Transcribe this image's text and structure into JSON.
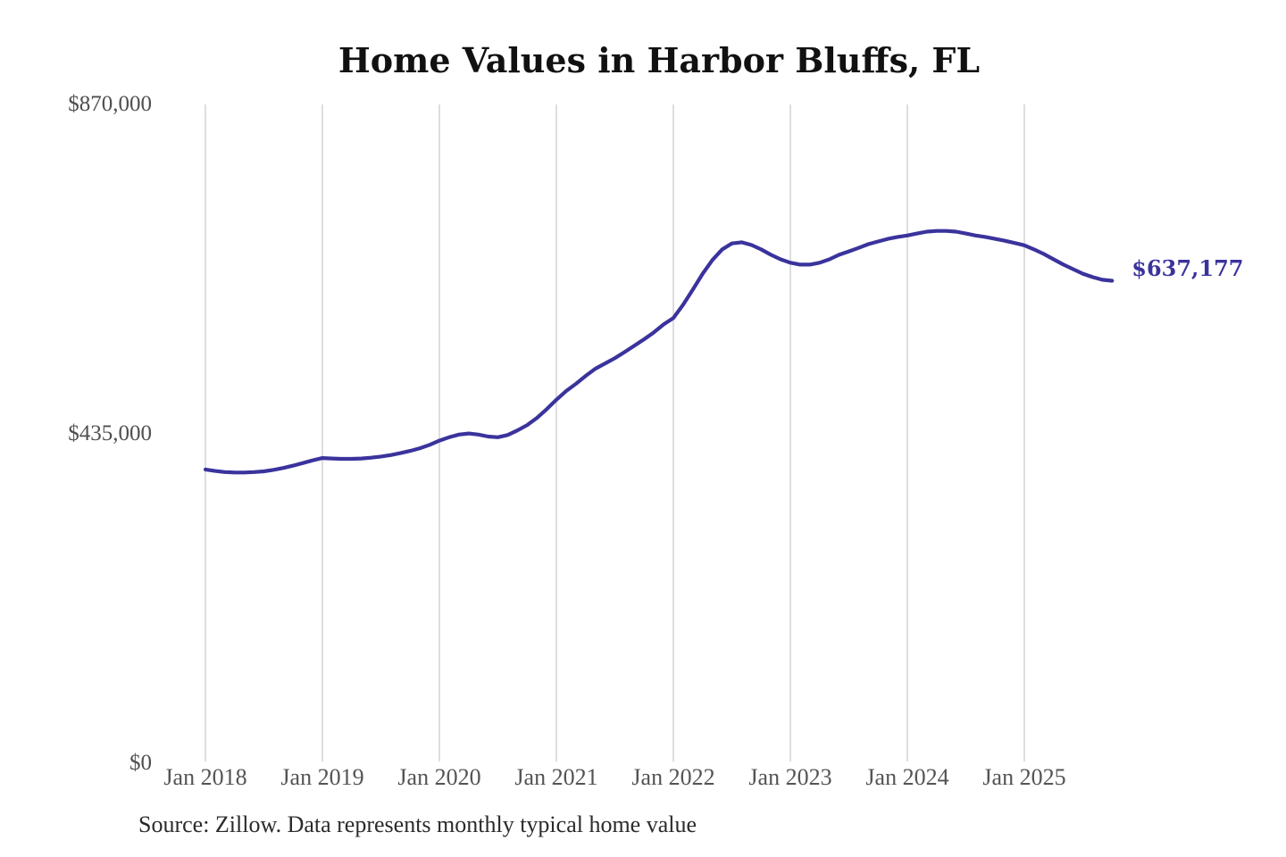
{
  "chart_data": {
    "type": "line",
    "title": "Home Values in Harbor Bluffs, FL",
    "source_note": "Source: Zillow. Data represents monthly typical home value",
    "end_label": "$637,177",
    "end_value": 637177,
    "line_color": "#3b339c",
    "grid_color": "#cccccc",
    "grid": "vertical-only",
    "legend": false,
    "ylim": [
      0,
      870000
    ],
    "y_ticks": [
      {
        "label": "$870,000",
        "value": 870000
      },
      {
        "label": "$435,000",
        "value": 435000
      },
      {
        "label": "$0",
        "value": 0
      }
    ],
    "x_ticks": [
      "Jan 2018",
      "Jan 2019",
      "Jan 2020",
      "Jan 2021",
      "Jan 2022",
      "Jan 2023",
      "Jan 2024",
      "Jan 2025"
    ],
    "x": [
      "2018-01",
      "2018-02",
      "2018-03",
      "2018-04",
      "2018-05",
      "2018-06",
      "2018-07",
      "2018-08",
      "2018-09",
      "2018-10",
      "2018-11",
      "2018-12",
      "2019-01",
      "2019-02",
      "2019-03",
      "2019-04",
      "2019-05",
      "2019-06",
      "2019-07",
      "2019-08",
      "2019-09",
      "2019-10",
      "2019-11",
      "2019-12",
      "2020-01",
      "2020-02",
      "2020-03",
      "2020-04",
      "2020-05",
      "2020-06",
      "2020-07",
      "2020-08",
      "2020-09",
      "2020-10",
      "2020-11",
      "2020-12",
      "2021-01",
      "2021-02",
      "2021-03",
      "2021-04",
      "2021-05",
      "2021-06",
      "2021-07",
      "2021-08",
      "2021-09",
      "2021-10",
      "2021-11",
      "2021-12",
      "2022-01",
      "2022-02",
      "2022-03",
      "2022-04",
      "2022-05",
      "2022-06",
      "2022-07",
      "2022-08",
      "2022-09",
      "2022-10",
      "2022-11",
      "2022-12",
      "2023-01",
      "2023-02",
      "2023-03",
      "2023-04",
      "2023-05",
      "2023-06",
      "2023-07",
      "2023-08",
      "2023-09",
      "2023-10",
      "2023-11",
      "2023-12",
      "2024-01",
      "2024-02",
      "2024-03",
      "2024-04",
      "2024-05",
      "2024-06",
      "2024-07",
      "2024-08",
      "2024-09",
      "2024-10",
      "2024-11",
      "2024-12",
      "2025-01",
      "2025-02",
      "2025-03",
      "2025-04",
      "2025-05",
      "2025-06",
      "2025-07",
      "2025-08",
      "2025-09",
      "2025-10"
    ],
    "values": [
      388000,
      386000,
      384500,
      384000,
      384000,
      384500,
      385500,
      387500,
      390000,
      393000,
      396500,
      400000,
      403000,
      402500,
      402000,
      402000,
      402500,
      403500,
      405000,
      407000,
      409500,
      412500,
      416000,
      420500,
      426000,
      430500,
      434000,
      435500,
      434000,
      431500,
      430500,
      433500,
      439500,
      446500,
      456000,
      467500,
      480000,
      491500,
      501000,
      511500,
      521000,
      528000,
      535000,
      543000,
      551500,
      560000,
      569000,
      579500,
      588000,
      605500,
      625500,
      646500,
      664500,
      678500,
      686500,
      688000,
      684500,
      678500,
      671500,
      665500,
      661000,
      658500,
      658500,
      661000,
      665500,
      671500,
      676000,
      680500,
      685500,
      689000,
      692500,
      695000,
      697000,
      699500,
      702000,
      703000,
      703000,
      702000,
      699500,
      697000,
      695000,
      692500,
      690000,
      687000,
      684000,
      678500,
      672500,
      665500,
      658500,
      652500,
      646500,
      642000,
      638500,
      637177
    ]
  }
}
